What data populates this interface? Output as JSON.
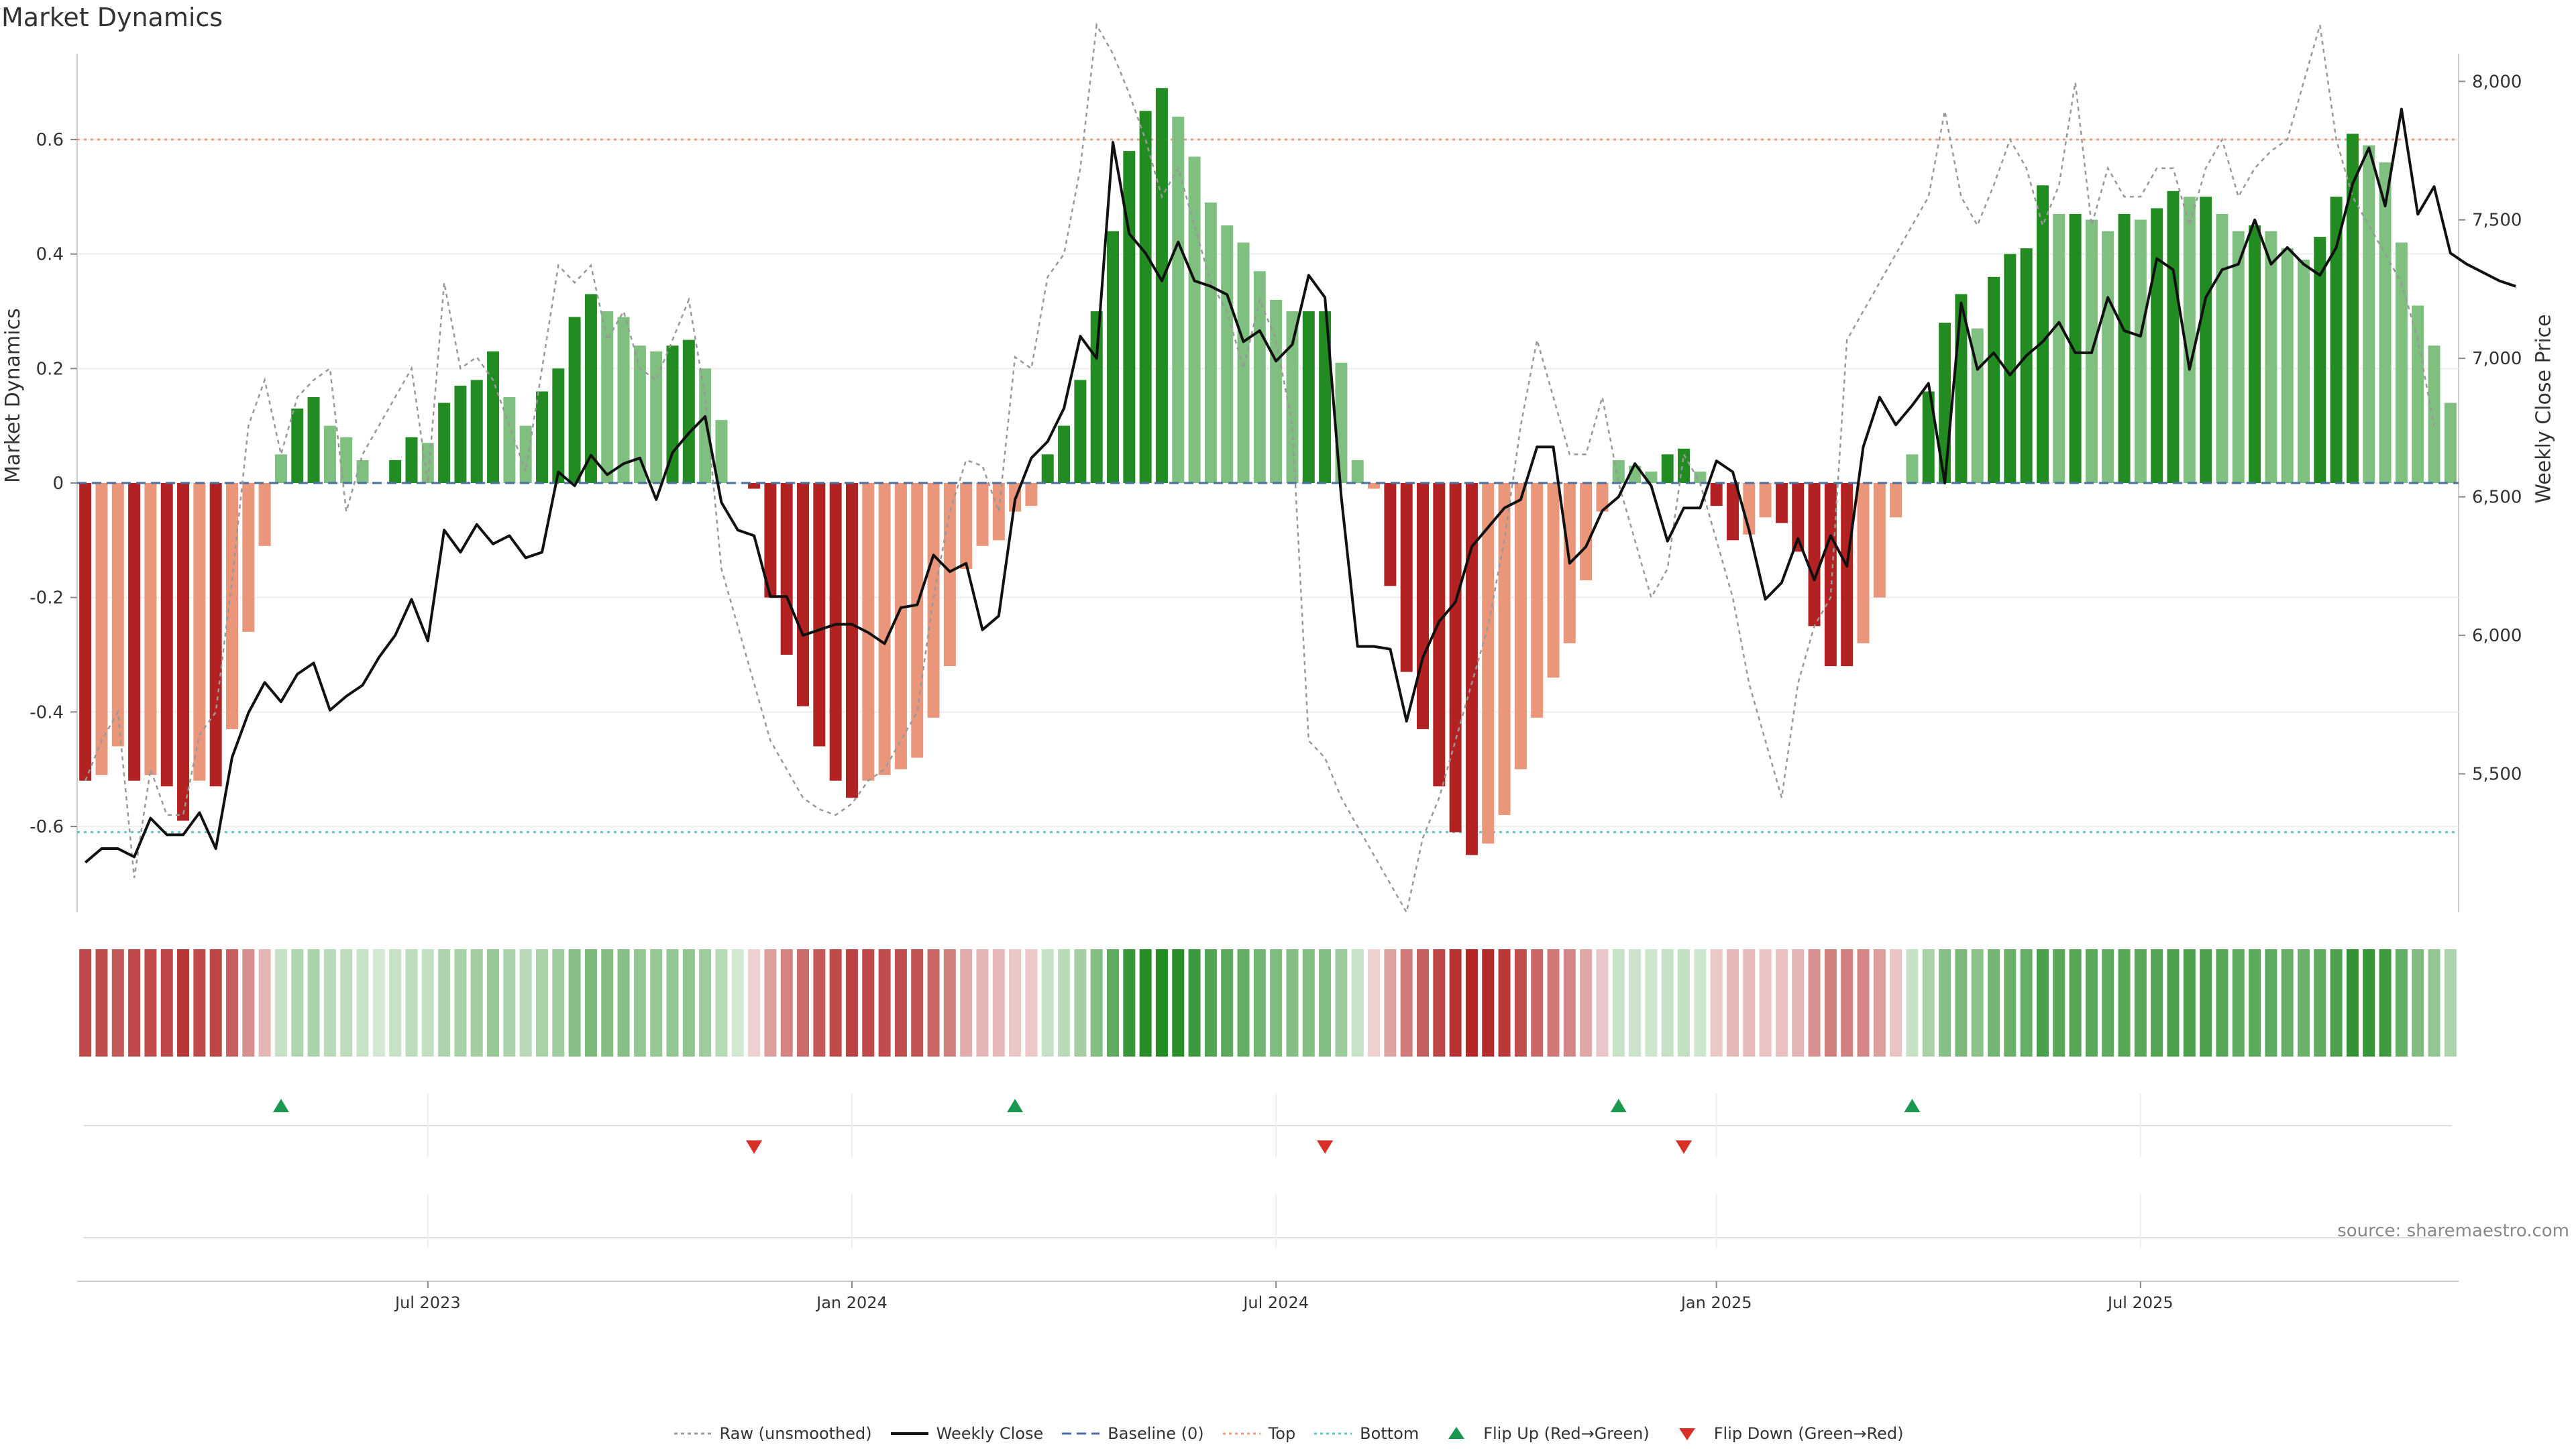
{
  "title": "Market Dynamics",
  "source_text": "source: sharemaestro.com",
  "chart_data": {
    "type": "bar",
    "y_label_left": "Market Dynamics",
    "y_label_right": "Weekly Close Price",
    "ylim_left": [
      -0.75,
      0.75
    ],
    "ylim_right": [
      5000,
      8100
    ],
    "left_ticks": [
      "-0.6",
      "-0.4",
      "-0.2",
      "0",
      "0.2",
      "0.4",
      "0.6"
    ],
    "right_ticks": [
      "5,500",
      "6,000",
      "6,500",
      "7,000",
      "7,500",
      "8,000"
    ],
    "x_ticks": [
      "Jul 2023",
      "Jan 2024",
      "Jul 2024",
      "Jan 2025",
      "Jul 2025"
    ],
    "top_threshold": 0.6,
    "bottom_threshold": -0.61,
    "colors": {
      "red_strong": "#b22222",
      "red_light": "#e9967a",
      "green_strong": "#228b22",
      "green_light": "#7fbf7f",
      "price_line": "#111111",
      "raw_line": "#999999",
      "baseline": "#4a6fa5",
      "top": "#e8a07a",
      "bottom": "#5fc6cf",
      "flip_up": "#1a9850",
      "flip_down": "#d73027"
    },
    "bars": [
      -0.52,
      -0.51,
      -0.46,
      -0.52,
      -0.51,
      -0.53,
      -0.59,
      -0.52,
      -0.53,
      -0.43,
      -0.26,
      -0.11,
      0.05,
      0.13,
      0.15,
      0.1,
      0.08,
      0.04,
      0.0,
      0.04,
      0.08,
      0.07,
      0.14,
      0.17,
      0.18,
      0.23,
      0.15,
      0.1,
      0.16,
      0.2,
      0.29,
      0.33,
      0.3,
      0.29,
      0.24,
      0.23,
      0.24,
      0.25,
      0.2,
      0.11,
      0.0,
      -0.01,
      -0.2,
      -0.3,
      -0.39,
      -0.46,
      -0.52,
      -0.55,
      -0.52,
      -0.51,
      -0.5,
      -0.48,
      -0.41,
      -0.32,
      -0.15,
      -0.11,
      -0.1,
      -0.05,
      -0.04,
      0.05,
      0.1,
      0.18,
      0.3,
      0.44,
      0.58,
      0.65,
      0.69,
      0.64,
      0.57,
      0.49,
      0.45,
      0.42,
      0.37,
      0.32,
      0.3,
      0.3,
      0.3,
      0.21,
      0.04,
      -0.01,
      -0.18,
      -0.33,
      -0.43,
      -0.53,
      -0.61,
      -0.65,
      -0.63,
      -0.58,
      -0.5,
      -0.41,
      -0.34,
      -0.28,
      -0.17,
      -0.05,
      0.04,
      0.03,
      0.02,
      0.05,
      0.06,
      0.02,
      -0.04,
      -0.1,
      -0.09,
      -0.06,
      -0.07,
      -0.12,
      -0.25,
      -0.32,
      -0.32,
      -0.28,
      -0.2,
      -0.06,
      0.05,
      0.16,
      0.28,
      0.33,
      0.27,
      0.36,
      0.4,
      0.41,
      0.52,
      0.47,
      0.47,
      0.46,
      0.44,
      0.47,
      0.46,
      0.48,
      0.51,
      0.5,
      0.5,
      0.47,
      0.44,
      0.45,
      0.44,
      0.41,
      0.39,
      0.43,
      0.5,
      0.61,
      0.59,
      0.56,
      0.42,
      0.31,
      0.24,
      0.14
    ],
    "raw_values": [
      -0.52,
      -0.45,
      -0.4,
      -0.69,
      -0.5,
      -0.58,
      -0.58,
      -0.44,
      -0.4,
      -0.17,
      0.1,
      0.18,
      0.05,
      0.15,
      0.18,
      0.2,
      -0.05,
      0.05,
      0.1,
      0.15,
      0.2,
      0.0,
      0.35,
      0.2,
      0.22,
      0.18,
      0.1,
      0.02,
      0.2,
      0.38,
      0.35,
      0.38,
      0.25,
      0.3,
      0.2,
      0.18,
      0.25,
      0.32,
      0.15,
      -0.15,
      -0.25,
      -0.35,
      -0.45,
      -0.5,
      -0.55,
      -0.57,
      -0.58,
      -0.56,
      -0.52,
      -0.5,
      -0.45,
      -0.4,
      -0.2,
      -0.05,
      0.04,
      0.03,
      -0.05,
      0.22,
      0.2,
      0.36,
      0.4,
      0.55,
      0.8,
      0.75,
      0.68,
      0.6,
      0.5,
      0.55,
      0.45,
      0.35,
      0.3,
      0.2,
      0.32,
      0.25,
      0.1,
      -0.45,
      -0.48,
      -0.55,
      -0.6,
      -0.65,
      -0.7,
      -0.75,
      -0.62,
      -0.55,
      -0.45,
      -0.35,
      -0.25,
      -0.1,
      0.1,
      0.25,
      0.15,
      0.05,
      0.05,
      0.15,
      0.0,
      -0.1,
      -0.2,
      -0.15,
      0.05,
      0.0,
      -0.1,
      -0.2,
      -0.35,
      -0.45,
      -0.55,
      -0.35,
      -0.25,
      -0.2,
      0.25,
      0.3,
      0.35,
      0.4,
      0.45,
      0.5,
      0.65,
      0.5,
      0.45,
      0.52,
      0.6,
      0.55,
      0.45,
      0.52,
      0.7,
      0.45,
      0.55,
      0.5,
      0.5,
      0.55,
      0.55,
      0.45,
      0.55,
      0.6,
      0.5,
      0.55,
      0.58,
      0.6,
      0.7,
      0.8,
      0.6,
      0.5,
      0.45,
      0.4,
      0.35,
      0.25,
      0.1
    ],
    "close": [
      5180,
      5230,
      5230,
      5200,
      5340,
      5280,
      5280,
      5360,
      5230,
      5560,
      5720,
      5830,
      5760,
      5860,
      5900,
      5730,
      5780,
      5820,
      5920,
      6000,
      6130,
      5980,
      6380,
      6300,
      6400,
      6330,
      6360,
      6280,
      6300,
      6590,
      6540,
      6650,
      6580,
      6620,
      6640,
      6490,
      6660,
      6730,
      6790,
      6480,
      6380,
      6360,
      6140,
      6140,
      6000,
      6020,
      6040,
      6040,
      6010,
      5970,
      6100,
      6110,
      6290,
      6230,
      6260,
      6020,
      6070,
      6490,
      6640,
      6700,
      6820,
      7080,
      7000,
      7780,
      7450,
      7380,
      7280,
      7420,
      7280,
      7260,
      7230,
      7060,
      7100,
      6990,
      7050,
      7300,
      7220,
      6500,
      5960,
      5960,
      5950,
      5690,
      5920,
      6050,
      6120,
      6320,
      6390,
      6460,
      6490,
      6680,
      6680,
      6260,
      6320,
      6450,
      6500,
      6620,
      6540,
      6340,
      6460,
      6460,
      6630,
      6590,
      6380,
      6130,
      6190,
      6350,
      6200,
      6360,
      6250,
      6680,
      6860,
      6760,
      6830,
      6910,
      6550,
      7200,
      6960,
      7020,
      6940,
      7010,
      7060,
      7130,
      7020,
      7020,
      7220,
      7100,
      7080,
      7360,
      7320,
      6960,
      7220,
      7320,
      7340,
      7500,
      7340,
      7400,
      7340,
      7300,
      7400,
      7630,
      7760,
      7550,
      7900,
      7520,
      7620,
      7380,
      7340,
      7310,
      7280,
      7260
    ],
    "heat_strip": [
      -0.52,
      -0.51,
      -0.46,
      -0.52,
      -0.51,
      -0.53,
      -0.59,
      -0.52,
      -0.53,
      -0.43,
      -0.26,
      -0.11,
      0.05,
      0.13,
      0.15,
      0.1,
      0.08,
      0.04,
      0.0,
      0.04,
      0.08,
      0.07,
      0.14,
      0.17,
      0.18,
      0.23,
      0.15,
      0.1,
      0.16,
      0.2,
      0.29,
      0.33,
      0.3,
      0.29,
      0.24,
      0.23,
      0.24,
      0.25,
      0.2,
      0.11,
      0.0,
      -0.01,
      -0.2,
      -0.3,
      -0.39,
      -0.46,
      -0.52,
      -0.55,
      -0.52,
      -0.51,
      -0.5,
      -0.48,
      -0.41,
      -0.32,
      -0.15,
      -0.11,
      -0.1,
      -0.05,
      -0.04,
      0.05,
      0.1,
      0.18,
      0.3,
      0.44,
      0.58,
      0.65,
      0.69,
      0.64,
      0.57,
      0.49,
      0.45,
      0.42,
      0.37,
      0.32,
      0.3,
      0.3,
      0.3,
      0.21,
      0.04,
      -0.01,
      -0.18,
      -0.33,
      -0.43,
      -0.53,
      -0.61,
      -0.65,
      -0.63,
      -0.58,
      -0.5,
      -0.41,
      -0.34,
      -0.28,
      -0.17,
      -0.05,
      0.04,
      0.03,
      0.02,
      0.05,
      0.06,
      0.02,
      -0.04,
      -0.1,
      -0.09,
      -0.06,
      -0.07,
      -0.12,
      -0.25,
      -0.32,
      -0.32,
      -0.28,
      -0.2,
      -0.06,
      0.05,
      0.16,
      0.28,
      0.33,
      0.27,
      0.36,
      0.4,
      0.41,
      0.52,
      0.47,
      0.47,
      0.46,
      0.44,
      0.47,
      0.46,
      0.48,
      0.51,
      0.5,
      0.5,
      0.47,
      0.44,
      0.45,
      0.44,
      0.41,
      0.39,
      0.43,
      0.5,
      0.61,
      0.59,
      0.56,
      0.42,
      0.31,
      0.24,
      0.14
    ],
    "flip_up_index": [
      12,
      57,
      94,
      112
    ],
    "flip_down_index": [
      41,
      76,
      98
    ],
    "legend": [
      {
        "label": "Raw (unsmoothed)",
        "style": "raw"
      },
      {
        "label": "Weekly Close",
        "style": "close"
      },
      {
        "label": "Baseline (0)",
        "style": "baseline"
      },
      {
        "label": "Top",
        "style": "top"
      },
      {
        "label": "Bottom",
        "style": "bottom"
      },
      {
        "label": "Flip Up (Red→Green)",
        "style": "flip_up"
      },
      {
        "label": "Flip Down (Green→Red)",
        "style": "flip_down"
      }
    ]
  }
}
